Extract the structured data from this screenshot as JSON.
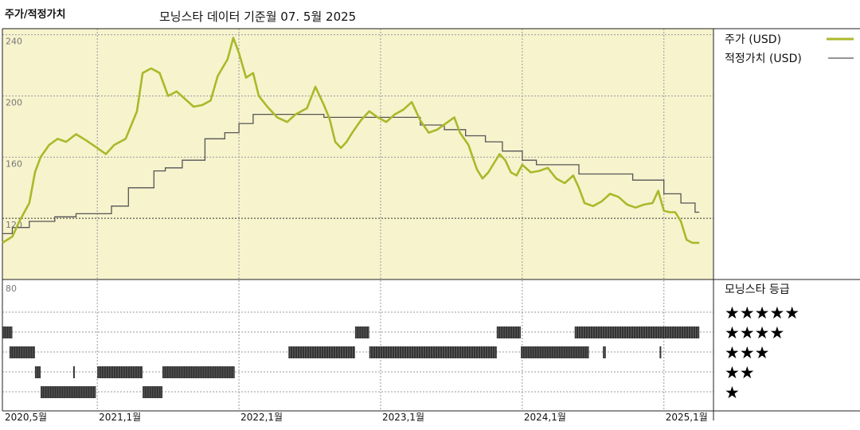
{
  "header": {
    "title": "주가/적정가치",
    "subtitle": "모닝스타 데이터 기준월 07. 5월 2025"
  },
  "legend": {
    "price": "주가 (USD)",
    "fair_value": "적정가치 (USD)",
    "rating_title": "모닝스타 등급"
  },
  "colors": {
    "price_line": "#a9b92a",
    "fair_value_line": "#555555",
    "plot_background": "#f7f3cd",
    "rating_bars": "#333333"
  },
  "chart_data": [
    {
      "type": "line",
      "y_ticks": [
        80,
        120,
        160,
        200,
        240
      ],
      "ylim": [
        80,
        244
      ],
      "x_ticks": [
        "2020,5월",
        "2021,1월",
        "2022,1월",
        "2023,1월",
        "2024,1월",
        "2025,1월"
      ],
      "x_range": [
        2020.33,
        2025.35
      ],
      "grid": true,
      "legend_position": "right",
      "series": [
        {
          "name": "주가 (USD)",
          "points": [
            [
              2020.33,
              104
            ],
            [
              2020.4,
              108
            ],
            [
              2020.45,
              118
            ],
            [
              2020.52,
              130
            ],
            [
              2020.56,
              150
            ],
            [
              2020.6,
              160
            ],
            [
              2020.66,
              168
            ],
            [
              2020.72,
              172
            ],
            [
              2020.78,
              170
            ],
            [
              2020.85,
              175
            ],
            [
              2020.92,
              171
            ],
            [
              2021.0,
              166
            ],
            [
              2021.06,
              162
            ],
            [
              2021.12,
              168
            ],
            [
              2021.2,
              172
            ],
            [
              2021.28,
              190
            ],
            [
              2021.32,
              215
            ],
            [
              2021.38,
              218
            ],
            [
              2021.44,
              215
            ],
            [
              2021.5,
              200
            ],
            [
              2021.56,
              203
            ],
            [
              2021.62,
              198
            ],
            [
              2021.68,
              193
            ],
            [
              2021.74,
              194
            ],
            [
              2021.8,
              197
            ],
            [
              2021.85,
              213
            ],
            [
              2021.92,
              224
            ],
            [
              2021.96,
              238
            ],
            [
              2022.0,
              228
            ],
            [
              2022.05,
              212
            ],
            [
              2022.1,
              215
            ],
            [
              2022.14,
              200
            ],
            [
              2022.2,
              193
            ],
            [
              2022.27,
              186
            ],
            [
              2022.34,
              183
            ],
            [
              2022.4,
              188
            ],
            [
              2022.48,
              192
            ],
            [
              2022.54,
              206
            ],
            [
              2022.6,
              194
            ],
            [
              2022.64,
              185
            ],
            [
              2022.68,
              170
            ],
            [
              2022.72,
              166
            ],
            [
              2022.76,
              170
            ],
            [
              2022.8,
              176
            ],
            [
              2022.86,
              184
            ],
            [
              2022.92,
              190
            ],
            [
              2022.98,
              186
            ],
            [
              2023.04,
              183
            ],
            [
              2023.1,
              188
            ],
            [
              2023.16,
              191
            ],
            [
              2023.22,
              196
            ],
            [
              2023.28,
              184
            ],
            [
              2023.34,
              176
            ],
            [
              2023.4,
              178
            ],
            [
              2023.46,
              182
            ],
            [
              2023.52,
              186
            ],
            [
              2023.56,
              176
            ],
            [
              2023.62,
              168
            ],
            [
              2023.68,
              152
            ],
            [
              2023.72,
              146
            ],
            [
              2023.76,
              150
            ],
            [
              2023.8,
              156
            ],
            [
              2023.84,
              162
            ],
            [
              2023.88,
              158
            ],
            [
              2023.92,
              150
            ],
            [
              2023.96,
              148
            ],
            [
              2024.0,
              155
            ],
            [
              2024.06,
              150
            ],
            [
              2024.12,
              151
            ],
            [
              2024.18,
              153
            ],
            [
              2024.24,
              146
            ],
            [
              2024.3,
              143
            ],
            [
              2024.36,
              148
            ],
            [
              2024.4,
              140
            ],
            [
              2024.44,
              130
            ],
            [
              2024.5,
              128
            ],
            [
              2024.56,
              131
            ],
            [
              2024.62,
              136
            ],
            [
              2024.68,
              134
            ],
            [
              2024.74,
              129
            ],
            [
              2024.8,
              127
            ],
            [
              2024.86,
              129
            ],
            [
              2024.92,
              130
            ],
            [
              2024.96,
              138
            ],
            [
              2025.0,
              125
            ],
            [
              2025.04,
              124
            ],
            [
              2025.08,
              124
            ],
            [
              2025.12,
              118
            ],
            [
              2025.16,
              106
            ],
            [
              2025.2,
              104
            ],
            [
              2025.25,
              104
            ]
          ]
        },
        {
          "name": "적정가치 (USD)",
          "points": [
            [
              2020.33,
              110
            ],
            [
              2020.4,
              110
            ],
            [
              2020.4,
              114
            ],
            [
              2020.52,
              114
            ],
            [
              2020.52,
              118
            ],
            [
              2020.7,
              118
            ],
            [
              2020.7,
              121
            ],
            [
              2020.85,
              121
            ],
            [
              2020.85,
              123
            ],
            [
              2021.1,
              123
            ],
            [
              2021.1,
              128
            ],
            [
              2021.22,
              128
            ],
            [
              2021.22,
              140
            ],
            [
              2021.4,
              140
            ],
            [
              2021.4,
              151
            ],
            [
              2021.48,
              151
            ],
            [
              2021.48,
              153
            ],
            [
              2021.6,
              153
            ],
            [
              2021.6,
              158
            ],
            [
              2021.76,
              158
            ],
            [
              2021.76,
              172
            ],
            [
              2021.9,
              172
            ],
            [
              2021.9,
              176
            ],
            [
              2022.0,
              176
            ],
            [
              2022.0,
              182
            ],
            [
              2022.1,
              182
            ],
            [
              2022.1,
              188
            ],
            [
              2022.6,
              188
            ],
            [
              2022.6,
              186
            ],
            [
              2023.28,
              186
            ],
            [
              2023.28,
              181
            ],
            [
              2023.45,
              181
            ],
            [
              2023.45,
              178
            ],
            [
              2023.6,
              178
            ],
            [
              2023.6,
              174
            ],
            [
              2023.74,
              174
            ],
            [
              2023.74,
              170
            ],
            [
              2023.86,
              170
            ],
            [
              2023.86,
              164
            ],
            [
              2024.0,
              164
            ],
            [
              2024.0,
              158
            ],
            [
              2024.1,
              158
            ],
            [
              2024.1,
              155
            ],
            [
              2024.4,
              155
            ],
            [
              2024.4,
              149
            ],
            [
              2024.78,
              149
            ],
            [
              2024.78,
              145
            ],
            [
              2025.0,
              145
            ],
            [
              2025.0,
              136
            ],
            [
              2025.12,
              136
            ],
            [
              2025.12,
              130
            ],
            [
              2025.22,
              130
            ],
            [
              2025.22,
              124
            ],
            [
              2025.25,
              124
            ]
          ]
        }
      ]
    },
    {
      "type": "rating_bars",
      "levels": [
        "★★★★★",
        "★★★★",
        "★★★",
        "★★",
        "★"
      ],
      "periods": {
        "4": [
          [
            2020.33,
            2020.4
          ],
          [
            2022.82,
            2022.92
          ],
          [
            2023.82,
            2023.99
          ],
          [
            2024.37,
            2025.25
          ]
        ],
        "3": [
          [
            2020.38,
            2020.56
          ],
          [
            2022.35,
            2022.82
          ],
          [
            2022.92,
            2023.82
          ],
          [
            2023.99,
            2024.47
          ],
          [
            2024.57,
            2024.59
          ],
          [
            2024.97,
            2024.98
          ]
        ],
        "2": [
          [
            2020.56,
            2020.6
          ],
          [
            2020.83,
            2020.84
          ],
          [
            2021.0,
            2021.32
          ],
          [
            2021.46,
            2021.97
          ]
        ],
        "1": [
          [
            2020.6,
            2020.99
          ],
          [
            2021.32,
            2021.46
          ]
        ]
      }
    }
  ]
}
